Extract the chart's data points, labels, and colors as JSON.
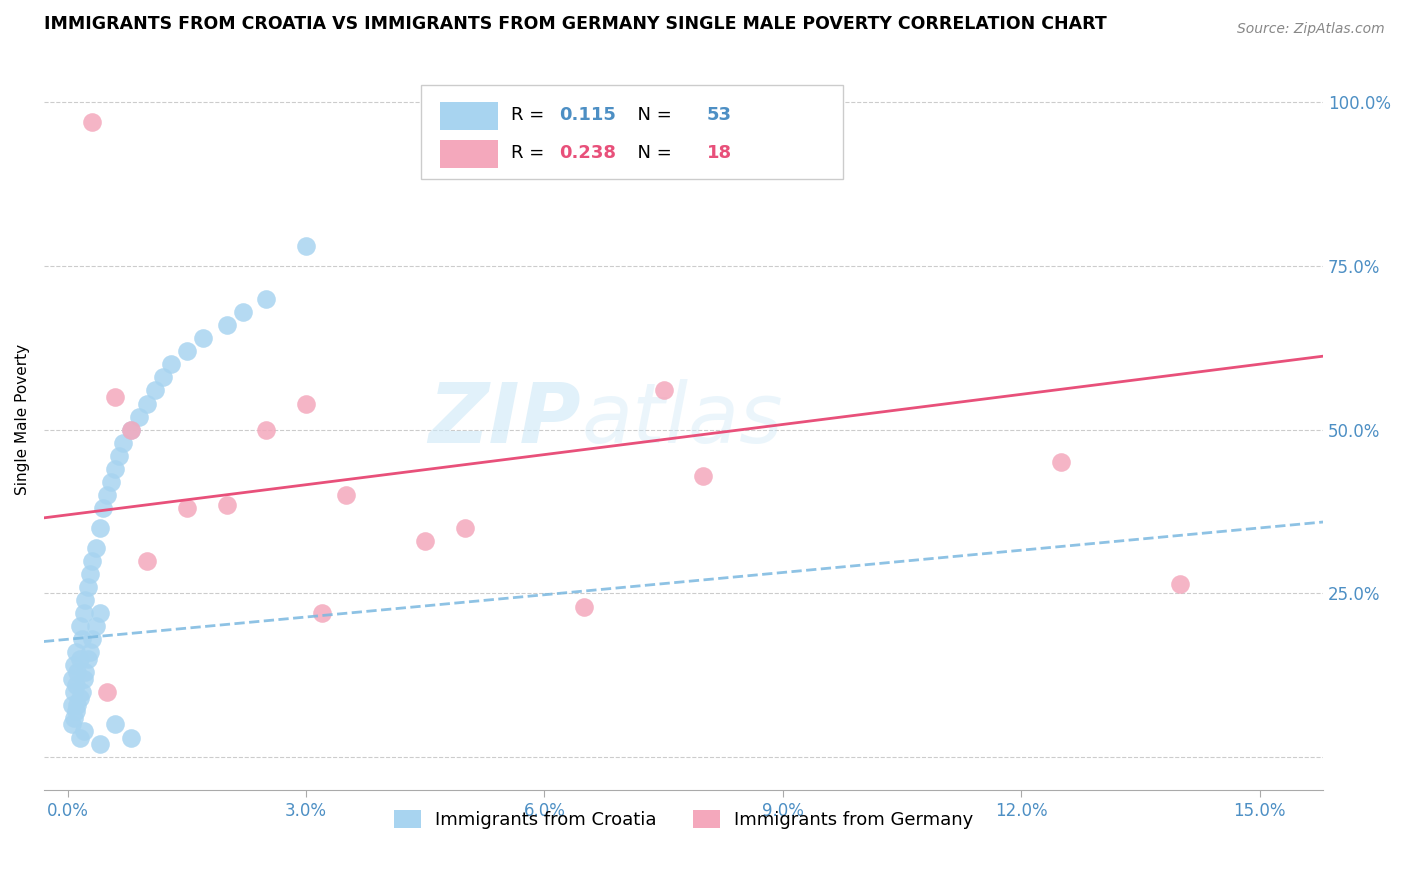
{
  "title": "IMMIGRANTS FROM CROATIA VS IMMIGRANTS FROM GERMANY SINGLE MALE POVERTY CORRELATION CHART",
  "source": "Source: ZipAtlas.com",
  "ylabel": "Single Male Poverty",
  "x_ticks": [
    0.0,
    3.0,
    6.0,
    9.0,
    12.0,
    15.0
  ],
  "y_right_ticks": [
    0.0,
    25.0,
    50.0,
    75.0,
    100.0
  ],
  "y_right_labels": [
    "",
    "25.0%",
    "50.0%",
    "75.0%",
    "100.0%"
  ],
  "xlim": [
    -0.3,
    15.8
  ],
  "ylim": [
    -5.0,
    108.0
  ],
  "croatia_R": 0.115,
  "croatia_N": 53,
  "germany_R": 0.238,
  "germany_N": 18,
  "croatia_color": "#a8d4f0",
  "germany_color": "#f4a8bc",
  "trend_croatia_color": "#7ab8e0",
  "trend_germany_color": "#e8507a",
  "watermark_zip": "ZIP",
  "watermark_atlas": "atlas",
  "legend_label_croatia": "Immigrants from Croatia",
  "legend_label_germany": "Immigrants from Germany",
  "croatia_x": [
    0.05,
    0.05,
    0.05,
    0.08,
    0.08,
    0.08,
    0.1,
    0.1,
    0.1,
    0.12,
    0.12,
    0.15,
    0.15,
    0.15,
    0.18,
    0.18,
    0.2,
    0.2,
    0.22,
    0.22,
    0.25,
    0.25,
    0.28,
    0.28,
    0.3,
    0.3,
    0.35,
    0.35,
    0.4,
    0.4,
    0.45,
    0.5,
    0.55,
    0.6,
    0.65,
    0.7,
    0.8,
    0.9,
    1.0,
    1.1,
    1.2,
    1.3,
    1.5,
    1.7,
    2.0,
    2.2,
    2.5,
    3.0,
    0.15,
    0.2,
    0.4,
    0.6,
    0.8
  ],
  "croatia_y": [
    5.0,
    8.0,
    12.0,
    6.0,
    10.0,
    14.0,
    7.0,
    11.0,
    16.0,
    8.0,
    13.0,
    9.0,
    15.0,
    20.0,
    10.0,
    18.0,
    12.0,
    22.0,
    13.0,
    24.0,
    15.0,
    26.0,
    16.0,
    28.0,
    18.0,
    30.0,
    20.0,
    32.0,
    22.0,
    35.0,
    38.0,
    40.0,
    42.0,
    44.0,
    46.0,
    48.0,
    50.0,
    52.0,
    54.0,
    56.0,
    58.0,
    60.0,
    62.0,
    64.0,
    66.0,
    68.0,
    70.0,
    78.0,
    3.0,
    4.0,
    2.0,
    5.0,
    3.0
  ],
  "germany_x": [
    0.3,
    0.6,
    0.8,
    1.5,
    2.5,
    3.0,
    3.5,
    4.5,
    5.0,
    6.5,
    7.5,
    8.0,
    12.5,
    14.0,
    1.0,
    2.0,
    3.2,
    0.5
  ],
  "germany_y": [
    97.0,
    55.0,
    50.0,
    38.0,
    50.0,
    54.0,
    40.0,
    33.0,
    35.0,
    23.0,
    56.0,
    43.0,
    45.0,
    26.5,
    30.0,
    38.5,
    22.0,
    10.0
  ]
}
